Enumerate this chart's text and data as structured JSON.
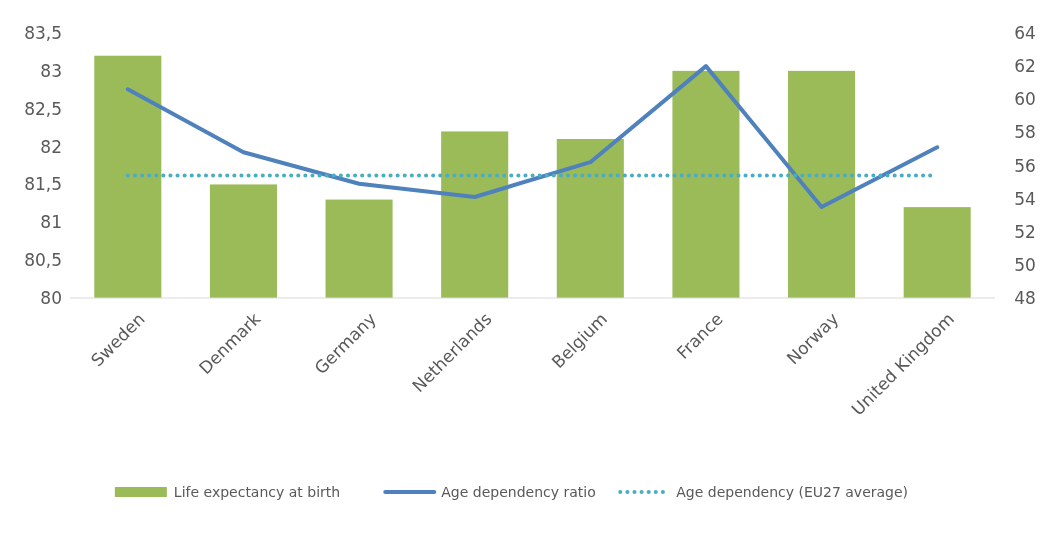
{
  "chart_data": {
    "type": "bar",
    "categories": [
      "Sweden",
      "Denmark",
      "Germany",
      "Netherlands",
      "Belgium",
      "France",
      "Norway",
      "United Kingdom"
    ],
    "series": [
      {
        "name": "Life expectancy at birth",
        "color": "#9bbb59",
        "values": [
          83.2,
          81.5,
          81.3,
          82.2,
          82.1,
          83.0,
          83.0,
          81.2
        ]
      },
      {
        "name": "Age dependency ratio",
        "type": "line",
        "axis": "y2",
        "color": "#4f81bd",
        "values": [
          60.6,
          56.8,
          54.9,
          54.1,
          56.2,
          62.0,
          53.5,
          57.1
        ]
      },
      {
        "name": "Age dependency (EU27 average)",
        "type": "line",
        "axis": "y2",
        "color": "#4bacc6",
        "line_style": "dotted",
        "values": [
          55.4,
          55.4,
          55.4,
          55.4,
          55.4,
          55.4,
          55.4,
          55.4
        ]
      }
    ],
    "ylim": [
      80,
      83.5
    ],
    "yticks": [
      {
        "value": 80,
        "label": "80"
      },
      {
        "value": 80.5,
        "label": "80,5"
      },
      {
        "value": 81,
        "label": "81"
      },
      {
        "value": 81.5,
        "label": "81,5"
      },
      {
        "value": 82,
        "label": "82"
      },
      {
        "value": 82.5,
        "label": "82,5"
      },
      {
        "value": 83,
        "label": "83"
      },
      {
        "value": 83.5,
        "label": "83,5"
      }
    ],
    "y2lim": [
      48,
      64
    ],
    "y2ticks": [
      48,
      50,
      52,
      54,
      56,
      58,
      60,
      62,
      64
    ],
    "legend": "bottom",
    "grid": false,
    "marker": "none"
  }
}
